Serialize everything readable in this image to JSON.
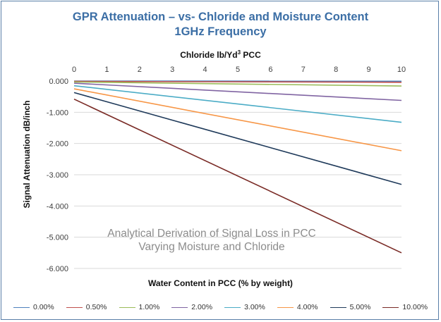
{
  "chart_data": {
    "type": "line",
    "title": "GPR Attenuation – vs- Chloride and Moisture Content",
    "subtitle": "1GHz Frequency",
    "x_top_label": "Chloride lb/Yd",
    "x_top_label_sup": "3",
    "x_top_label_suffix": " PCC",
    "ylabel": "Signal Attenuation dB/inch",
    "xlabel": "Water Content in PCC (% by weight)",
    "annotation_line1": "Analytical Derivation of Signal Loss in PCC",
    "annotation_line2": "Varying Moisture and Chloride",
    "xlim": [
      0,
      10
    ],
    "ylim": [
      -6.0,
      0.0
    ],
    "x_ticks": [
      "0",
      "1",
      "2",
      "3",
      "4",
      "5",
      "6",
      "7",
      "8",
      "9",
      "10"
    ],
    "y_ticks": [
      "0.000",
      "-1.000",
      "-2.000",
      "-3.000",
      "-4.000",
      "-5.000",
      "-6.000"
    ],
    "y_tick_values": [
      0,
      -1,
      -2,
      -3,
      -4,
      -5,
      -6
    ],
    "grid": "horizontal",
    "legend_position": "bottom",
    "series": [
      {
        "name": "0.00%",
        "color": "#4f81bd",
        "x": [
          0,
          10
        ],
        "y": [
          0.0,
          -0.005
        ]
      },
      {
        "name": "0.50%",
        "color": "#c0504d",
        "x": [
          0,
          10
        ],
        "y": [
          -0.01,
          -0.04
        ]
      },
      {
        "name": "1.00%",
        "color": "#9bbb59",
        "x": [
          0,
          10
        ],
        "y": [
          -0.03,
          -0.16
        ]
      },
      {
        "name": "2.00%",
        "color": "#8064a2",
        "x": [
          0,
          10
        ],
        "y": [
          -0.07,
          -0.62
        ]
      },
      {
        "name": "3.00%",
        "color": "#4bacc6",
        "x": [
          0,
          10
        ],
        "y": [
          -0.15,
          -1.32
        ]
      },
      {
        "name": "4.00%",
        "color": "#f79646",
        "x": [
          0,
          10
        ],
        "y": [
          -0.25,
          -2.23
        ]
      },
      {
        "name": "5.00%",
        "color": "#1f3a5a",
        "x": [
          0,
          10
        ],
        "y": [
          -0.37,
          -3.31
        ]
      },
      {
        "name": "10.00%",
        "color": "#7a2b26",
        "x": [
          0,
          10
        ],
        "y": [
          -0.58,
          -5.5
        ]
      }
    ]
  }
}
